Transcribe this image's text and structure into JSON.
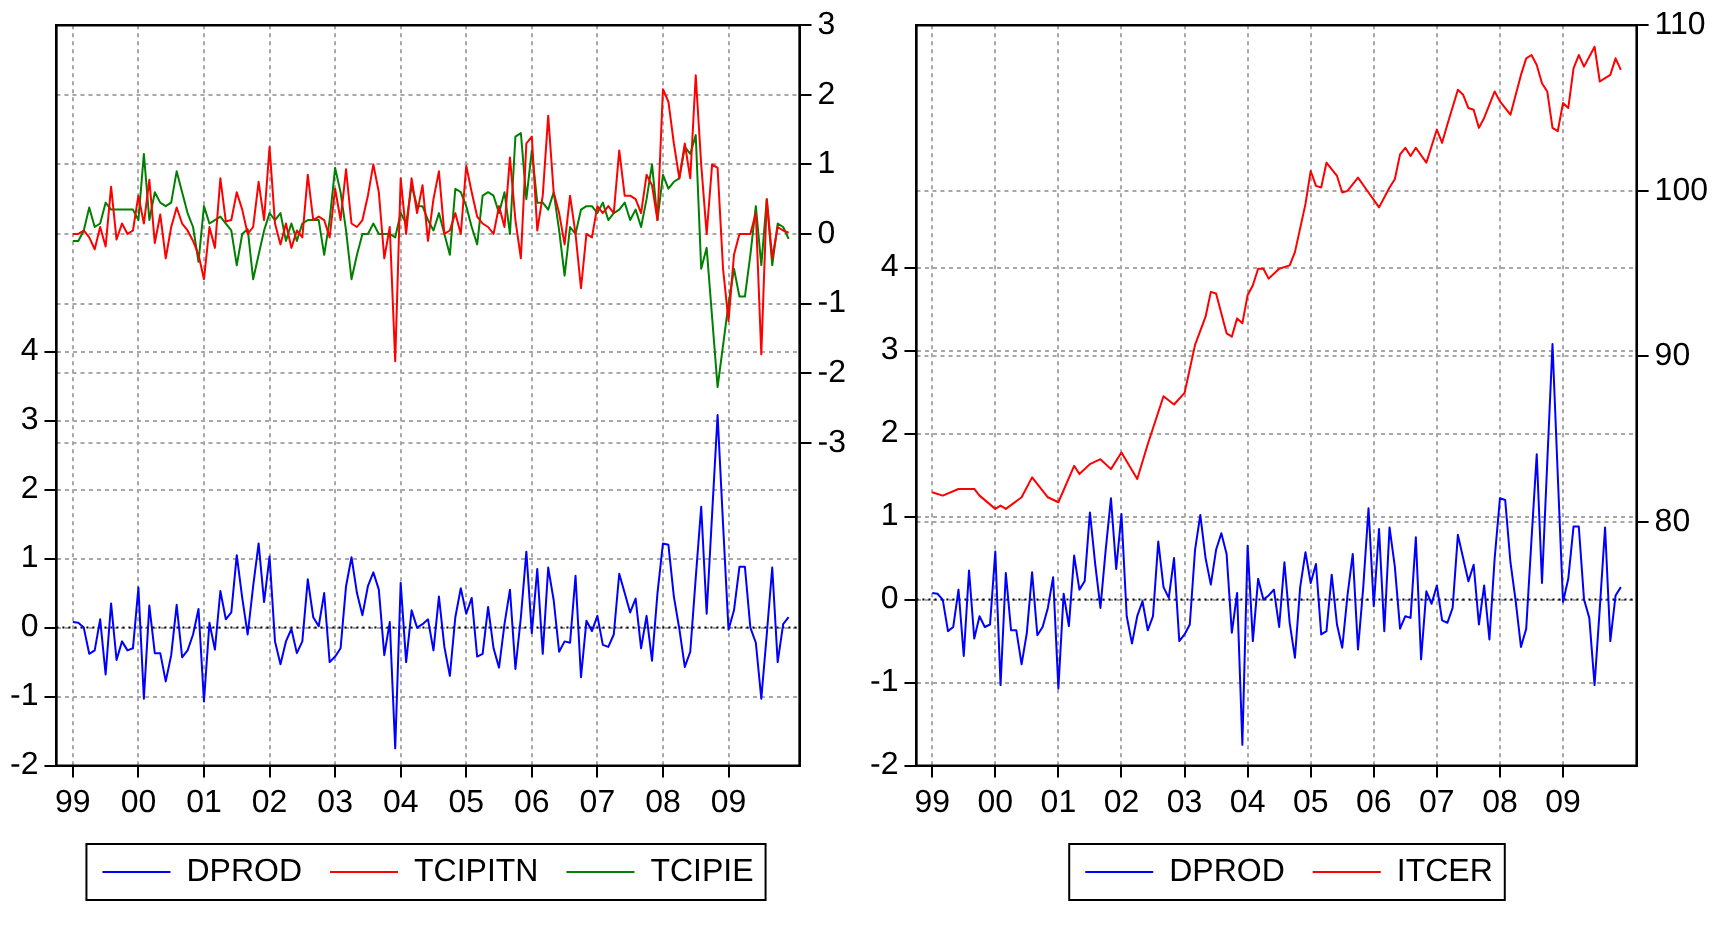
{
  "chart_data": [
    {
      "type": "line",
      "x": [
        "1999-01",
        "1999-02",
        "1999-03",
        "1999-04",
        "1999-05",
        "1999-06",
        "1999-07",
        "1999-08",
        "1999-09",
        "1999-10",
        "1999-11",
        "1999-12",
        "2000-01",
        "2000-02",
        "2000-03",
        "2000-04",
        "2000-05",
        "2000-06",
        "2000-07",
        "2000-08",
        "2000-09",
        "2000-10",
        "2000-11",
        "2000-12",
        "2001-01",
        "2001-02",
        "2001-03",
        "2001-04",
        "2001-05",
        "2001-06",
        "2001-07",
        "2001-08",
        "2001-09",
        "2001-10",
        "2001-11",
        "2001-12",
        "2002-01",
        "2002-02",
        "2002-03",
        "2002-04",
        "2002-05",
        "2002-06",
        "2002-07",
        "2002-08",
        "2002-09",
        "2002-10",
        "2002-11",
        "2002-12",
        "2003-01",
        "2003-02",
        "2003-03",
        "2003-04",
        "2003-05",
        "2003-06",
        "2003-07",
        "2003-08",
        "2003-09",
        "2003-10",
        "2003-11",
        "2003-12",
        "2004-01",
        "2004-02",
        "2004-03",
        "2004-04",
        "2004-05",
        "2004-06",
        "2004-07",
        "2004-08",
        "2004-09",
        "2004-10",
        "2004-11",
        "2004-12",
        "2005-01",
        "2005-02",
        "2005-03",
        "2005-04",
        "2005-05",
        "2005-06",
        "2005-07",
        "2005-08",
        "2005-09",
        "2005-10",
        "2005-11",
        "2005-12",
        "2006-01",
        "2006-02",
        "2006-03",
        "2006-04",
        "2006-05",
        "2006-06",
        "2006-07",
        "2006-08",
        "2006-09",
        "2006-10",
        "2006-11",
        "2006-12",
        "2007-01",
        "2007-02",
        "2007-03",
        "2007-04",
        "2007-05",
        "2007-06",
        "2007-07",
        "2007-08",
        "2007-09",
        "2007-10",
        "2007-11",
        "2007-12",
        "2008-01",
        "2008-02",
        "2008-03",
        "2008-04",
        "2008-05",
        "2008-06",
        "2008-07",
        "2008-08",
        "2008-09",
        "2008-10",
        "2008-11",
        "2008-12",
        "2009-01",
        "2009-02",
        "2009-03",
        "2009-04",
        "2009-05",
        "2009-06",
        "2009-07",
        "2009-08",
        "2009-09",
        "2009-10",
        "2009-11",
        "2009-12"
      ],
      "xlim": [
        "1998-10",
        "2010-02"
      ],
      "xticks": [
        {
          "value": "1999-01",
          "label": "99"
        },
        {
          "value": "2000-01",
          "label": "00"
        },
        {
          "value": "2001-01",
          "label": "01"
        },
        {
          "value": "2002-01",
          "label": "02"
        },
        {
          "value": "2003-01",
          "label": "03"
        },
        {
          "value": "2004-01",
          "label": "04"
        },
        {
          "value": "2005-01",
          "label": "05"
        },
        {
          "value": "2006-01",
          "label": "06"
        },
        {
          "value": "2007-01",
          "label": "07"
        },
        {
          "value": "2008-01",
          "label": "08"
        },
        {
          "value": "2009-01",
          "label": "09"
        }
      ],
      "ylim": [
        -2,
        8.73
      ],
      "yticks": [
        -2,
        -1,
        0,
        1,
        2,
        3,
        4
      ],
      "y2lim": [
        -7.64,
        3
      ],
      "y2ticks": [
        -3,
        -2,
        -1,
        0,
        1,
        2,
        3
      ],
      "series": [
        {
          "name": "DPROD",
          "color": "#0000ff",
          "values": [
            0.08,
            0.07,
            0.0,
            -0.38,
            -0.33,
            0.12,
            -0.68,
            0.35,
            -0.47,
            -0.2,
            -0.33,
            -0.3,
            0.58,
            -1.03,
            0.32,
            -0.37,
            -0.37,
            -0.78,
            -0.4,
            0.33,
            -0.43,
            -0.33,
            -0.1,
            0.27,
            -1.07,
            0.07,
            -0.32,
            0.53,
            0.12,
            0.22,
            1.05,
            0.43,
            -0.1,
            0.6,
            1.22,
            0.37,
            1.03,
            -0.2,
            -0.53,
            -0.2,
            -0.02,
            -0.37,
            -0.2,
            0.7,
            0.15,
            0.02,
            0.5,
            -0.5,
            -0.42,
            -0.3,
            0.6,
            1.02,
            0.5,
            0.18,
            0.6,
            0.8,
            0.55,
            -0.4,
            0.08,
            -1.75,
            0.65,
            -0.5,
            0.25,
            0.0,
            0.05,
            0.12,
            -0.33,
            0.45,
            -0.28,
            -0.7,
            0.15,
            0.57,
            0.2,
            0.43,
            -0.42,
            -0.38,
            0.3,
            -0.3,
            -0.58,
            0.05,
            0.55,
            -0.6,
            0.15,
            1.1,
            -0.08,
            0.85,
            -0.38,
            0.87,
            0.4,
            -0.35,
            -0.2,
            -0.22,
            0.75,
            -0.72,
            0.1,
            -0.05,
            0.17,
            -0.25,
            -0.28,
            -0.1,
            0.78,
            0.5,
            0.22,
            0.42,
            -0.3,
            0.17,
            -0.48,
            0.5,
            1.22,
            1.2,
            0.45,
            -0.02,
            -0.57,
            -0.35,
            0.72,
            1.75,
            0.2,
            1.65,
            3.08,
            1.5,
            -0.03,
            0.25,
            0.88,
            0.88,
            0.0,
            -0.22,
            -1.03,
            -0.1,
            0.87,
            -0.5,
            0.05,
            0.15
          ]
        },
        {
          "name": "TCIPITN",
          "color": "#ff0000",
          "axis": "y2",
          "values": [
            0.0,
            0.0,
            0.05,
            -0.05,
            -0.22,
            0.1,
            -0.18,
            0.68,
            -0.08,
            0.15,
            0.0,
            0.05,
            0.55,
            0.15,
            0.78,
            -0.13,
            0.28,
            -0.35,
            0.1,
            0.38,
            0.15,
            0.05,
            -0.1,
            -0.3,
            -0.65,
            0.1,
            -0.2,
            0.8,
            0.18,
            0.2,
            0.6,
            0.35,
            0.0,
            0.1,
            0.75,
            0.2,
            1.25,
            0.15,
            -0.15,
            0.15,
            -0.2,
            0.05,
            -0.05,
            0.85,
            0.2,
            0.25,
            0.2,
            -0.05,
            0.65,
            0.2,
            0.93,
            0.15,
            0.1,
            0.2,
            0.55,
            1.0,
            0.6,
            -0.35,
            0.1,
            -1.83,
            0.8,
            0.0,
            0.8,
            0.3,
            0.7,
            -0.1,
            0.5,
            0.9,
            0.0,
            0.05,
            0.3,
            0.0,
            0.98,
            0.6,
            0.25,
            0.15,
            0.1,
            0.0,
            0.4,
            0.1,
            1.1,
            0.2,
            -0.35,
            1.3,
            1.4,
            0.05,
            0.55,
            1.7,
            0.6,
            0.3,
            -0.15,
            0.55,
            0.0,
            -0.78,
            0.0,
            -0.05,
            0.4,
            0.3,
            0.4,
            0.3,
            1.2,
            0.55,
            0.55,
            0.5,
            0.3,
            0.85,
            0.7,
            0.2,
            2.08,
            1.9,
            1.3,
            0.8,
            1.3,
            0.8,
            2.28,
            1.0,
            0.0,
            1.0,
            0.95,
            -0.5,
            -1.25,
            -0.3,
            0.0,
            0.0,
            0.0,
            0.3,
            -1.73,
            0.5,
            -0.35,
            0.1,
            0.05,
            0.02
          ]
        },
        {
          "name": "TCIPIE",
          "color": "#008000",
          "axis": "y2",
          "values": [
            -0.1,
            -0.1,
            0.05,
            0.38,
            0.1,
            0.15,
            0.45,
            0.35,
            0.35,
            0.35,
            0.35,
            0.35,
            0.2,
            1.15,
            0.2,
            0.6,
            0.45,
            0.4,
            0.45,
            0.9,
            0.6,
            0.3,
            0.1,
            -0.4,
            0.4,
            0.15,
            0.2,
            0.25,
            0.15,
            0.05,
            -0.45,
            0.0,
            0.07,
            -0.65,
            -0.3,
            0.05,
            0.3,
            0.2,
            0.3,
            -0.1,
            0.15,
            -0.1,
            0.15,
            0.2,
            0.2,
            0.2,
            -0.3,
            0.2,
            0.95,
            0.6,
            0.05,
            -0.65,
            -0.3,
            0.0,
            0.0,
            0.15,
            0.0,
            0.0,
            0.0,
            -0.05,
            0.3,
            0.15,
            0.7,
            0.4,
            0.4,
            0.2,
            0.05,
            0.3,
            0.0,
            -0.3,
            0.65,
            0.6,
            0.4,
            0.1,
            -0.15,
            0.55,
            0.6,
            0.55,
            0.3,
            0.6,
            0.0,
            1.4,
            1.45,
            0.5,
            1.2,
            0.45,
            0.45,
            0.35,
            0.6,
            0.05,
            -0.6,
            0.1,
            0.0,
            0.35,
            0.4,
            0.4,
            0.3,
            0.45,
            0.2,
            0.3,
            0.35,
            0.45,
            0.2,
            0.35,
            0.1,
            0.5,
            1.0,
            0.2,
            0.85,
            0.65,
            0.75,
            0.8,
            1.25,
            1.15,
            1.42,
            -0.5,
            -0.2,
            -1.2,
            -2.2,
            -1.6,
            -1.0,
            -0.5,
            -0.9,
            -0.9,
            -0.3,
            0.4,
            -0.45,
            0.5,
            -0.45,
            0.15,
            0.1,
            -0.07
          ]
        }
      ],
      "ref_lines": [
        {
          "axis": "y",
          "value": 0,
          "color": "#000000",
          "line_style": "dotted"
        }
      ],
      "grid": true,
      "legend": "bottom"
    },
    {
      "type": "line",
      "x": [
        "1999-01",
        "1999-02",
        "1999-03",
        "1999-04",
        "1999-05",
        "1999-06",
        "1999-07",
        "1999-08",
        "1999-09",
        "1999-10",
        "1999-11",
        "1999-12",
        "2000-01",
        "2000-02",
        "2000-03",
        "2000-04",
        "2000-05",
        "2000-06",
        "2000-07",
        "2000-08",
        "2000-09",
        "2000-10",
        "2000-11",
        "2000-12",
        "2001-01",
        "2001-02",
        "2001-03",
        "2001-04",
        "2001-05",
        "2001-06",
        "2001-07",
        "2001-08",
        "2001-09",
        "2001-10",
        "2001-11",
        "2001-12",
        "2002-01",
        "2002-02",
        "2002-03",
        "2002-04",
        "2002-05",
        "2002-06",
        "2002-07",
        "2002-08",
        "2002-09",
        "2002-10",
        "2002-11",
        "2002-12",
        "2003-01",
        "2003-02",
        "2003-03",
        "2003-04",
        "2003-05",
        "2003-06",
        "2003-07",
        "2003-08",
        "2003-09",
        "2003-10",
        "2003-11",
        "2003-12",
        "2004-01",
        "2004-02",
        "2004-03",
        "2004-04",
        "2004-05",
        "2004-06",
        "2004-07",
        "2004-08",
        "2004-09",
        "2004-10",
        "2004-11",
        "2004-12",
        "2005-01",
        "2005-02",
        "2005-03",
        "2005-04",
        "2005-05",
        "2005-06",
        "2005-07",
        "2005-08",
        "2005-09",
        "2005-10",
        "2005-11",
        "2005-12",
        "2006-01",
        "2006-02",
        "2006-03",
        "2006-04",
        "2006-05",
        "2006-06",
        "2006-07",
        "2006-08",
        "2006-09",
        "2006-10",
        "2006-11",
        "2006-12",
        "2007-01",
        "2007-02",
        "2007-03",
        "2007-04",
        "2007-05",
        "2007-06",
        "2007-07",
        "2007-08",
        "2007-09",
        "2007-10",
        "2007-11",
        "2007-12",
        "2008-01",
        "2008-02",
        "2008-03",
        "2008-04",
        "2008-05",
        "2008-06",
        "2008-07",
        "2008-08",
        "2008-09",
        "2008-10",
        "2008-11",
        "2008-12",
        "2009-01",
        "2009-02",
        "2009-03",
        "2009-04",
        "2009-05",
        "2009-06",
        "2009-07",
        "2009-08",
        "2009-09",
        "2009-10",
        "2009-11",
        "2009-12"
      ],
      "xlim": [
        "1998-10",
        "2010-03"
      ],
      "xticks": [
        {
          "value": "1999-01",
          "label": "99"
        },
        {
          "value": "2000-01",
          "label": "00"
        },
        {
          "value": "2001-01",
          "label": "01"
        },
        {
          "value": "2002-01",
          "label": "02"
        },
        {
          "value": "2003-01",
          "label": "03"
        },
        {
          "value": "2004-01",
          "label": "04"
        },
        {
          "value": "2005-01",
          "label": "05"
        },
        {
          "value": "2006-01",
          "label": "06"
        },
        {
          "value": "2007-01",
          "label": "07"
        },
        {
          "value": "2008-01",
          "label": "08"
        },
        {
          "value": "2009-01",
          "label": "09"
        }
      ],
      "ylim": [
        -2,
        6.92
      ],
      "yticks": [
        -2,
        -1,
        0,
        1,
        2,
        3,
        4
      ],
      "y2lim": [
        65.3,
        110
      ],
      "y2ticks": [
        80,
        90,
        100,
        110
      ],
      "series": [
        {
          "name": "DPROD",
          "color": "#0000ff",
          "values": [
            0.08,
            0.07,
            0.0,
            -0.38,
            -0.33,
            0.12,
            -0.68,
            0.35,
            -0.47,
            -0.2,
            -0.33,
            -0.3,
            0.58,
            -1.03,
            0.32,
            -0.37,
            -0.37,
            -0.78,
            -0.4,
            0.33,
            -0.43,
            -0.33,
            -0.1,
            0.27,
            -1.07,
            0.07,
            -0.32,
            0.53,
            0.12,
            0.22,
            1.05,
            0.43,
            -0.1,
            0.6,
            1.22,
            0.37,
            1.03,
            -0.2,
            -0.53,
            -0.2,
            -0.02,
            -0.37,
            -0.2,
            0.7,
            0.15,
            0.02,
            0.5,
            -0.5,
            -0.42,
            -0.3,
            0.6,
            1.02,
            0.5,
            0.18,
            0.6,
            0.8,
            0.55,
            -0.4,
            0.08,
            -1.75,
            0.65,
            -0.5,
            0.25,
            0.0,
            0.05,
            0.12,
            -0.33,
            0.45,
            -0.28,
            -0.7,
            0.15,
            0.57,
            0.2,
            0.43,
            -0.42,
            -0.38,
            0.3,
            -0.3,
            -0.58,
            0.05,
            0.55,
            -0.6,
            0.15,
            1.1,
            -0.08,
            0.85,
            -0.38,
            0.87,
            0.4,
            -0.35,
            -0.2,
            -0.22,
            0.75,
            -0.72,
            0.1,
            -0.05,
            0.17,
            -0.25,
            -0.28,
            -0.1,
            0.78,
            0.5,
            0.22,
            0.42,
            -0.3,
            0.17,
            -0.48,
            0.5,
            1.22,
            1.2,
            0.45,
            -0.02,
            -0.57,
            -0.35,
            0.72,
            1.75,
            0.2,
            1.65,
            3.08,
            1.5,
            -0.03,
            0.25,
            0.88,
            0.88,
            0.0,
            -0.22,
            -1.03,
            -0.1,
            0.87,
            -0.5,
            0.05,
            0.15
          ]
        },
        {
          "name": "ITCER",
          "color": "#ff0000",
          "axis": "y2",
          "x": [
            "1999-01",
            "1999-03",
            "1999-06",
            "1999-09",
            "1999-10",
            "2000-01",
            "2000-02",
            "2000-03",
            "2000-06",
            "2000-08",
            "2000-11",
            "2001-01",
            "2001-04",
            "2001-05",
            "2001-07",
            "2001-09",
            "2001-11",
            "2002-01",
            "2002-04",
            "2002-06",
            "2002-09",
            "2002-11",
            "2003-01",
            "2003-03",
            "2003-05",
            "2003-06",
            "2003-07",
            "2003-09",
            "2003-10",
            "2003-11",
            "2003-12",
            "2004-01",
            "2004-02",
            "2004-03",
            "2004-04",
            "2004-05",
            "2004-07",
            "2004-09",
            "2004-10",
            "2004-12",
            "2005-01",
            "2005-02",
            "2005-03",
            "2005-04",
            "2005-06",
            "2005-07",
            "2005-08",
            "2005-10",
            "2005-12",
            "2006-02",
            "2006-04",
            "2006-05",
            "2006-06",
            "2006-07",
            "2006-08",
            "2006-09",
            "2006-11",
            "2007-01",
            "2007-02",
            "2007-03",
            "2007-05",
            "2007-06",
            "2007-07",
            "2007-08",
            "2007-09",
            "2007-10",
            "2007-12",
            "2008-01",
            "2008-03",
            "2008-05",
            "2008-06",
            "2008-07",
            "2008-08",
            "2008-09",
            "2008-10",
            "2008-11",
            "2008-12",
            "2009-01",
            "2009-02",
            "2009-03",
            "2009-04",
            "2009-05",
            "2009-06",
            "2009-07",
            "2009-08",
            "2009-09",
            "2009-10",
            "2009-11",
            "2009-12"
          ],
          "values": [
            81.8,
            81.6,
            82.0,
            82.0,
            81.6,
            80.8,
            81.0,
            80.8,
            81.5,
            82.7,
            81.5,
            81.2,
            83.4,
            82.9,
            83.5,
            83.8,
            83.2,
            84.2,
            82.6,
            84.7,
            87.6,
            87.1,
            87.8,
            90.7,
            92.4,
            93.9,
            93.8,
            91.4,
            91.2,
            92.3,
            92.0,
            93.7,
            94.3,
            95.3,
            95.3,
            94.7,
            95.3,
            95.5,
            96.3,
            99.2,
            101.2,
            100.3,
            100.2,
            101.7,
            100.9,
            99.9,
            100.0,
            100.8,
            99.9,
            99.0,
            100.2,
            100.7,
            102.2,
            102.6,
            102.1,
            102.6,
            101.7,
            103.7,
            102.9,
            104.0,
            106.1,
            105.8,
            105.0,
            104.9,
            103.8,
            104.4,
            106.0,
            105.4,
            104.6,
            107.0,
            108.0,
            108.2,
            107.6,
            106.5,
            106.0,
            103.8,
            103.6,
            105.3,
            105.0,
            107.4,
            108.2,
            107.5,
            108.1,
            108.7,
            106.6,
            106.8,
            107.0,
            108.0,
            107.3
          ]
        }
      ],
      "ref_lines": [
        {
          "axis": "y",
          "value": 0,
          "color": "#000000",
          "line_style": "dotted"
        }
      ],
      "grid": true,
      "legend": "bottom"
    }
  ]
}
